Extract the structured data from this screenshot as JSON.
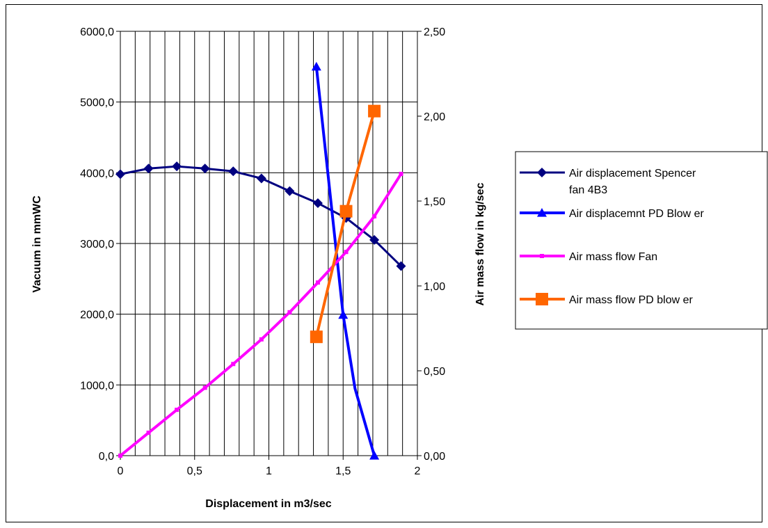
{
  "chart_data": {
    "type": "line",
    "xlabel": "Displacement in m3/sec",
    "ylabel": "Vacuum in mmWC",
    "y2label": "Air mass flow in kg/sec",
    "xlim": [
      0,
      2
    ],
    "ylim": [
      0,
      6000
    ],
    "y2lim": [
      0,
      2.5
    ],
    "x_ticks": [
      "0",
      "0,5",
      "1",
      "1,5",
      "2"
    ],
    "x_tick_values": [
      0,
      0.5,
      1,
      1.5,
      2
    ],
    "y_ticks": [
      "0,0",
      "1000,0",
      "2000,0",
      "3000,0",
      "4000,0",
      "5000,0",
      "6000,0"
    ],
    "y_tick_values": [
      0,
      1000,
      2000,
      3000,
      4000,
      5000,
      6000
    ],
    "y2_ticks": [
      "0,00",
      "0,50",
      "1,00",
      "1,50",
      "2,00",
      "2,50"
    ],
    "y2_tick_values": [
      0,
      0.5,
      1,
      1.5,
      2,
      2.5
    ],
    "grid": "vertical every 0.1 on x, horizontal at left-axis ticks",
    "legend_position": "right",
    "series": [
      {
        "name": "Air displacement Spencer fan 4B3",
        "axis": "left",
        "color": "#000080",
        "marker": "diamond",
        "x": [
          0,
          0.19,
          0.38,
          0.57,
          0.76,
          0.95,
          1.14,
          1.33,
          1.52,
          1.71,
          1.89
        ],
        "y": [
          3980,
          4060,
          4090,
          4060,
          4020,
          3920,
          3740,
          3570,
          3360,
          3050,
          2680
        ]
      },
      {
        "name": "Air displacemnt PD Blow er",
        "axis": "left",
        "color": "#0000FF",
        "marker": "triangle",
        "x": [
          1.32,
          1.5,
          1.58,
          1.71
        ],
        "y": [
          5500,
          1990,
          950,
          0
        ],
        "marker_indices": [
          0,
          1,
          3
        ]
      },
      {
        "name": "Air mass flow  Fan",
        "axis": "right",
        "color": "#FF00FF",
        "marker": "square-small",
        "x": [
          0,
          0.19,
          0.38,
          0.57,
          0.76,
          0.95,
          1.14,
          1.33,
          1.52,
          1.71,
          1.89
        ],
        "y": [
          0,
          0.135,
          0.27,
          0.4,
          0.54,
          0.685,
          0.845,
          1.02,
          1.2,
          1.41,
          1.66
        ]
      },
      {
        "name": "Air mass flow  PD blow er",
        "axis": "right",
        "color": "#FF6600",
        "marker": "square",
        "x": [
          1.32,
          1.52,
          1.71
        ],
        "y": [
          0.7,
          1.44,
          2.03
        ]
      }
    ]
  }
}
